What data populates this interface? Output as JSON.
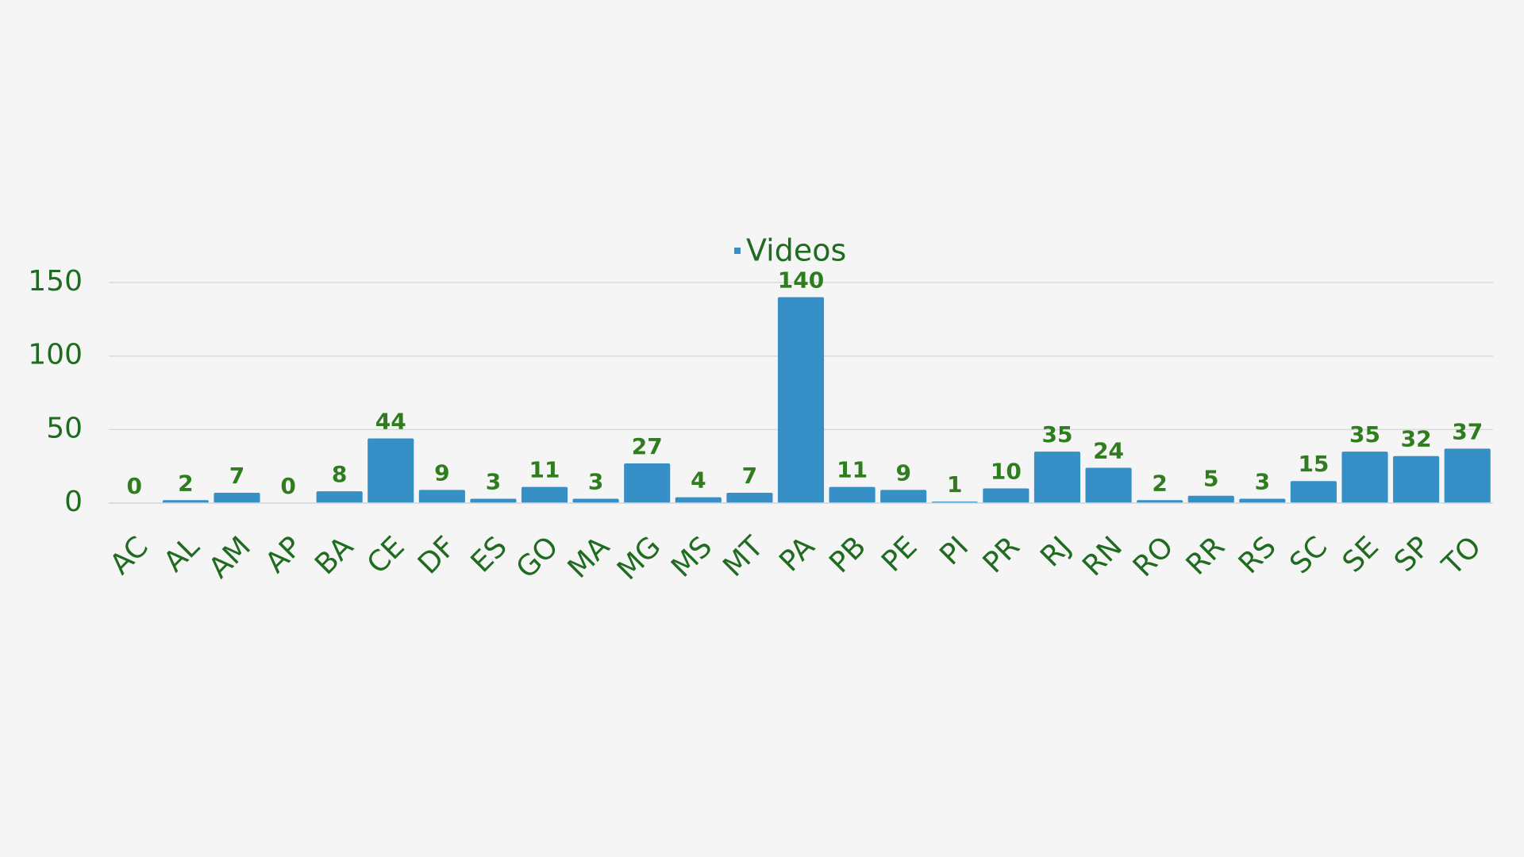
{
  "chart_data": {
    "type": "bar",
    "categories": [
      "AC",
      "AL",
      "AM",
      "AP",
      "BA",
      "CE",
      "DF",
      "ES",
      "GO",
      "MA",
      "MG",
      "MS",
      "MT",
      "PA",
      "PB",
      "PE",
      "PI",
      "PR",
      "RJ",
      "RN",
      "RO",
      "RR",
      "RS",
      "SC",
      "SE",
      "SP",
      "TO"
    ],
    "series": [
      {
        "name": "Videos",
        "color": "#378fc8",
        "values": [
          0,
          2,
          7,
          0,
          8,
          44,
          9,
          3,
          11,
          3,
          27,
          4,
          7,
          140,
          11,
          9,
          1,
          10,
          35,
          24,
          2,
          5,
          3,
          15,
          35,
          32,
          37
        ]
      }
    ],
    "ylim": [
      0,
      150
    ],
    "yticks": [
      0,
      50,
      100,
      150
    ],
    "grid": true,
    "legend": "top"
  }
}
